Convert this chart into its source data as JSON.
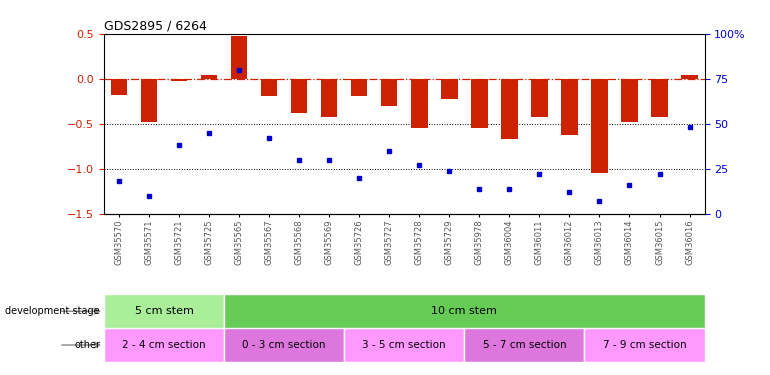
{
  "title": "GDS2895 / 6264",
  "samples": [
    "GSM35570",
    "GSM35571",
    "GSM35721",
    "GSM35725",
    "GSM35565",
    "GSM35567",
    "GSM35568",
    "GSM35569",
    "GSM35726",
    "GSM35727",
    "GSM35728",
    "GSM35729",
    "GSM35978",
    "GSM36004",
    "GSM36011",
    "GSM36012",
    "GSM36013",
    "GSM36014",
    "GSM36015",
    "GSM36016"
  ],
  "log2_ratio": [
    -0.18,
    -0.48,
    -0.02,
    0.04,
    0.47,
    -0.19,
    -0.38,
    -0.43,
    -0.19,
    -0.3,
    -0.55,
    -0.22,
    -0.55,
    -0.67,
    -0.43,
    -0.63,
    -1.05,
    -0.48,
    -0.42,
    0.04
  ],
  "percentile": [
    18,
    10,
    38,
    45,
    80,
    42,
    30,
    30,
    20,
    35,
    27,
    24,
    14,
    14,
    22,
    12,
    7,
    16,
    22,
    48
  ],
  "dev_stage_groups": [
    {
      "label": "5 cm stem",
      "start": 0,
      "end": 4,
      "color": "#aaee99"
    },
    {
      "label": "10 cm stem",
      "start": 4,
      "end": 20,
      "color": "#66cc55"
    }
  ],
  "other_groups": [
    {
      "label": "2 - 4 cm section",
      "start": 0,
      "end": 4,
      "color": "#ff99ff"
    },
    {
      "label": "0 - 3 cm section",
      "start": 4,
      "end": 8,
      "color": "#dd77dd"
    },
    {
      "label": "3 - 5 cm section",
      "start": 8,
      "end": 12,
      "color": "#ff99ff"
    },
    {
      "label": "5 - 7 cm section",
      "start": 12,
      "end": 16,
      "color": "#dd77dd"
    },
    {
      "label": "7 - 9 cm section",
      "start": 16,
      "end": 20,
      "color": "#ff99ff"
    }
  ],
  "ylim_left": [
    -1.5,
    0.5
  ],
  "ylim_right": [
    0,
    100
  ],
  "bar_color": "#cc2200",
  "dot_color": "#0000cc",
  "bg_color": "#ffffff",
  "tick_label_color": "#555555",
  "hline_color": "#cc2200",
  "dotline_color": "#000000"
}
